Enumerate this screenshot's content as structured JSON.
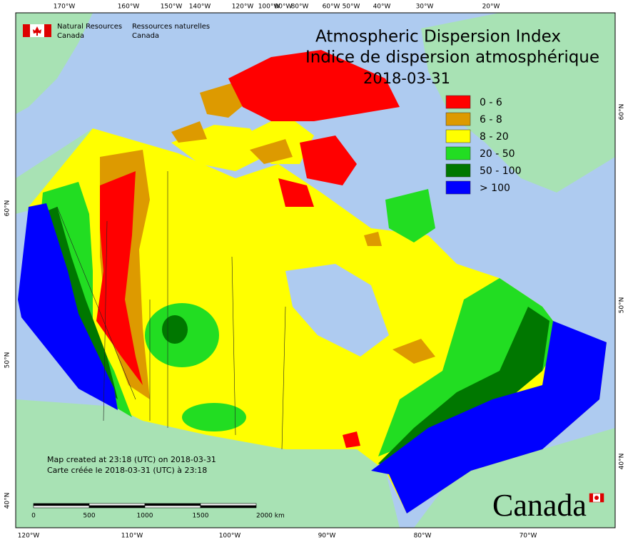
{
  "header": {
    "org_en": [
      "Natural Resources",
      "Canada"
    ],
    "org_fr": [
      "Ressources naturelles",
      "Canada"
    ]
  },
  "title": [
    "Atmospheric Dispersion Index",
    "Indice de dispersion atmosphérique"
  ],
  "date": "2018-03-31",
  "legend": [
    {
      "label": "0 - 6",
      "color": "#ff0000"
    },
    {
      "label": "6 - 8",
      "color": "#dd9a00"
    },
    {
      "label": "8 - 20",
      "color": "#ffff00"
    },
    {
      "label": "20 - 50",
      "color": "#22dd22"
    },
    {
      "label": "50 - 100",
      "color": "#007700"
    },
    {
      "label": "> 100",
      "color": "#0000ff"
    }
  ],
  "graticule": {
    "top": [
      "170°W",
      "160°W",
      "150°W",
      "140°W",
      "120°W",
      "100°W",
      "90°W",
      "80°W",
      "60°W",
      "50°W",
      "40°W",
      "30°W",
      "20°W"
    ],
    "bottom": [
      "120°W",
      "110°W",
      "100°W",
      "90°W",
      "80°W",
      "70°W"
    ],
    "left": [
      "60°N",
      "50°N",
      "40°N"
    ],
    "right": [
      "60°N",
      "50°N",
      "40°N"
    ]
  },
  "scale": [
    "0",
    "500",
    "1000",
    "1500",
    "2000 km"
  ],
  "notes": [
    "Map created at 23:18 (UTC) on 2018-03-31",
    "Carte créée le 2018-03-31 (UTC) à 23:18"
  ],
  "wordmark": "Canada"
}
